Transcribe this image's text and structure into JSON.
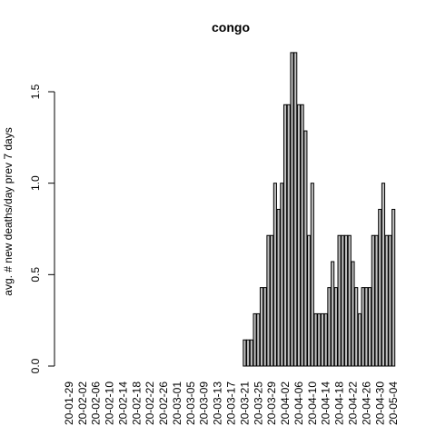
{
  "chart_data": {
    "type": "bar",
    "title": "congo",
    "xlabel": "",
    "ylabel": "avg. # new deaths/day prev  7  days",
    "ylim": [
      0,
      1.75
    ],
    "yticks": [
      0.0,
      0.5,
      1.0,
      1.5
    ],
    "ytick_labels": [
      "0.0",
      "0.5",
      "1.0",
      "1.5"
    ],
    "grid": false,
    "start_date": "2020-01-29",
    "xtick_labels": [
      "20-01-29",
      "20-02-02",
      "20-02-06",
      "20-02-10",
      "20-02-14",
      "20-02-18",
      "20-02-22",
      "20-02-26",
      "20-03-01",
      "20-03-05",
      "20-03-09",
      "20-03-13",
      "20-03-17",
      "20-03-21",
      "20-03-25",
      "20-03-29",
      "20-04-02",
      "20-04-06",
      "20-04-10",
      "20-04-14",
      "20-04-18",
      "20-04-22",
      "20-04-26",
      "20-04-30",
      "20-05-04"
    ],
    "values": [
      0,
      0,
      0,
      0,
      0,
      0,
      0,
      0,
      0,
      0,
      0,
      0,
      0,
      0,
      0,
      0,
      0,
      0,
      0,
      0,
      0,
      0,
      0,
      0,
      0,
      0,
      0,
      0,
      0,
      0,
      0,
      0,
      0,
      0,
      0,
      0,
      0,
      0,
      0,
      0,
      0,
      0,
      0,
      0,
      0,
      0,
      0,
      0,
      0,
      0,
      0,
      0,
      0.143,
      0.143,
      0.143,
      0.286,
      0.286,
      0.429,
      0.429,
      0.714,
      0.714,
      1.0,
      0.857,
      1.0,
      1.429,
      1.429,
      1.714,
      1.714,
      1.429,
      1.429,
      1.286,
      0.714,
      1.0,
      0.286,
      0.286,
      0.286,
      0.286,
      0.429,
      0.571,
      0.429,
      0.714,
      0.714,
      0.714,
      0.714,
      0.571,
      0.429,
      0.286,
      0.429,
      0.429,
      0.429,
      0.714,
      0.714,
      0.857,
      1.0,
      0.714,
      0.714,
      0.857
    ]
  }
}
